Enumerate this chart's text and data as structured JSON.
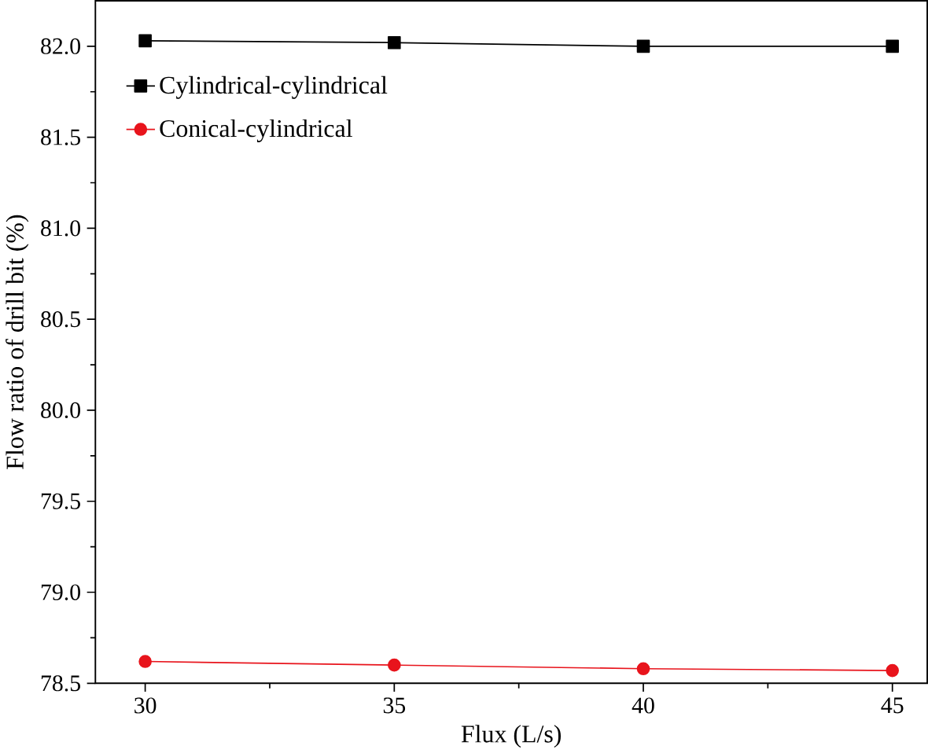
{
  "chart_data": {
    "type": "line",
    "xlabel": "Flux (L/s)",
    "ylabel": "Flow ratio of drill bit (%)",
    "x": [
      30,
      35,
      40,
      45
    ],
    "series": [
      {
        "name": "Cylindrical-cylindrical",
        "color": "#000000",
        "marker": "square",
        "values": [
          82.03,
          82.02,
          82.0,
          82.0
        ]
      },
      {
        "name": "Conical-cylindrical",
        "color": "#e8141c",
        "marker": "circle",
        "values": [
          78.62,
          78.6,
          78.58,
          78.57
        ]
      }
    ],
    "xlim": [
      29,
      45.7
    ],
    "ylim": [
      78.5,
      82.25
    ],
    "xticks": [
      30,
      35,
      40,
      45
    ],
    "yticks": [
      78.5,
      {
        "value": 79,
        "label": "79.0"
      },
      79.5,
      {
        "value": 80,
        "label": "80.0"
      },
      80.5,
      {
        "value": 81,
        "label": "81.0"
      },
      81.5,
      {
        "value": 82,
        "label": "82.0"
      }
    ],
    "grid": false,
    "legend": "top left"
  }
}
